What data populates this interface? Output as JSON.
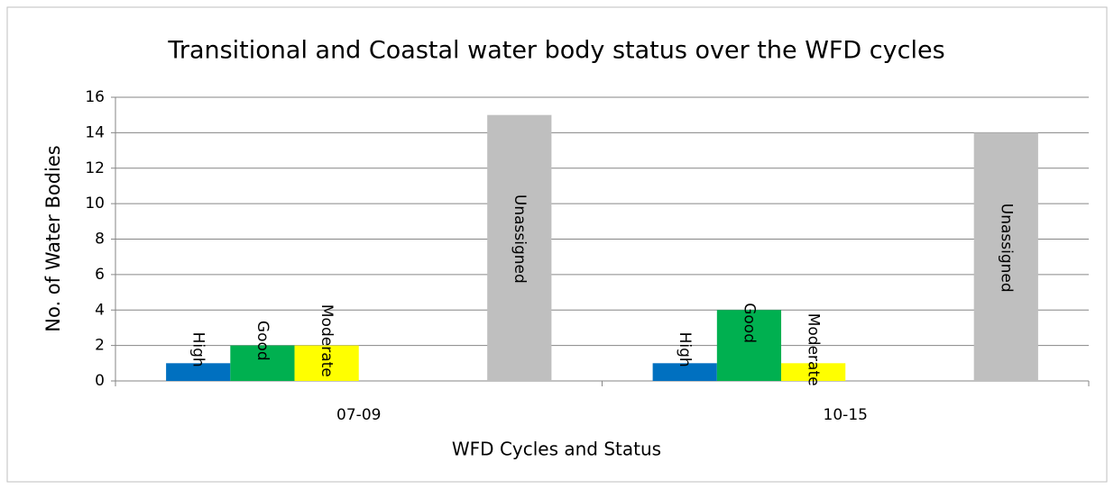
{
  "chart_data": {
    "type": "bar",
    "title": "Transitional and Coastal water body status over the WFD  cycles",
    "x_label": "WFD Cycles and Status",
    "y_label": "No. of Water Bodies",
    "categories": [
      "07-09",
      "10-15"
    ],
    "series": [
      {
        "name": "High",
        "color": "#0070c0",
        "values": [
          1,
          1
        ]
      },
      {
        "name": "Good",
        "color": "#00b050",
        "values": [
          2,
          4
        ]
      },
      {
        "name": "Moderate",
        "color": "#ffff00",
        "values": [
          2,
          1
        ]
      },
      {
        "name": null,
        "values": [
          null,
          null
        ]
      },
      {
        "name": null,
        "values": [
          null,
          null
        ]
      },
      {
        "name": "Unassigned",
        "color": "#bfbfbf",
        "values": [
          15,
          14
        ]
      }
    ],
    "ylim": [
      0,
      16
    ],
    "yticks": [
      0,
      2,
      4,
      6,
      8,
      10,
      12,
      14,
      16
    ],
    "grid": true
  }
}
